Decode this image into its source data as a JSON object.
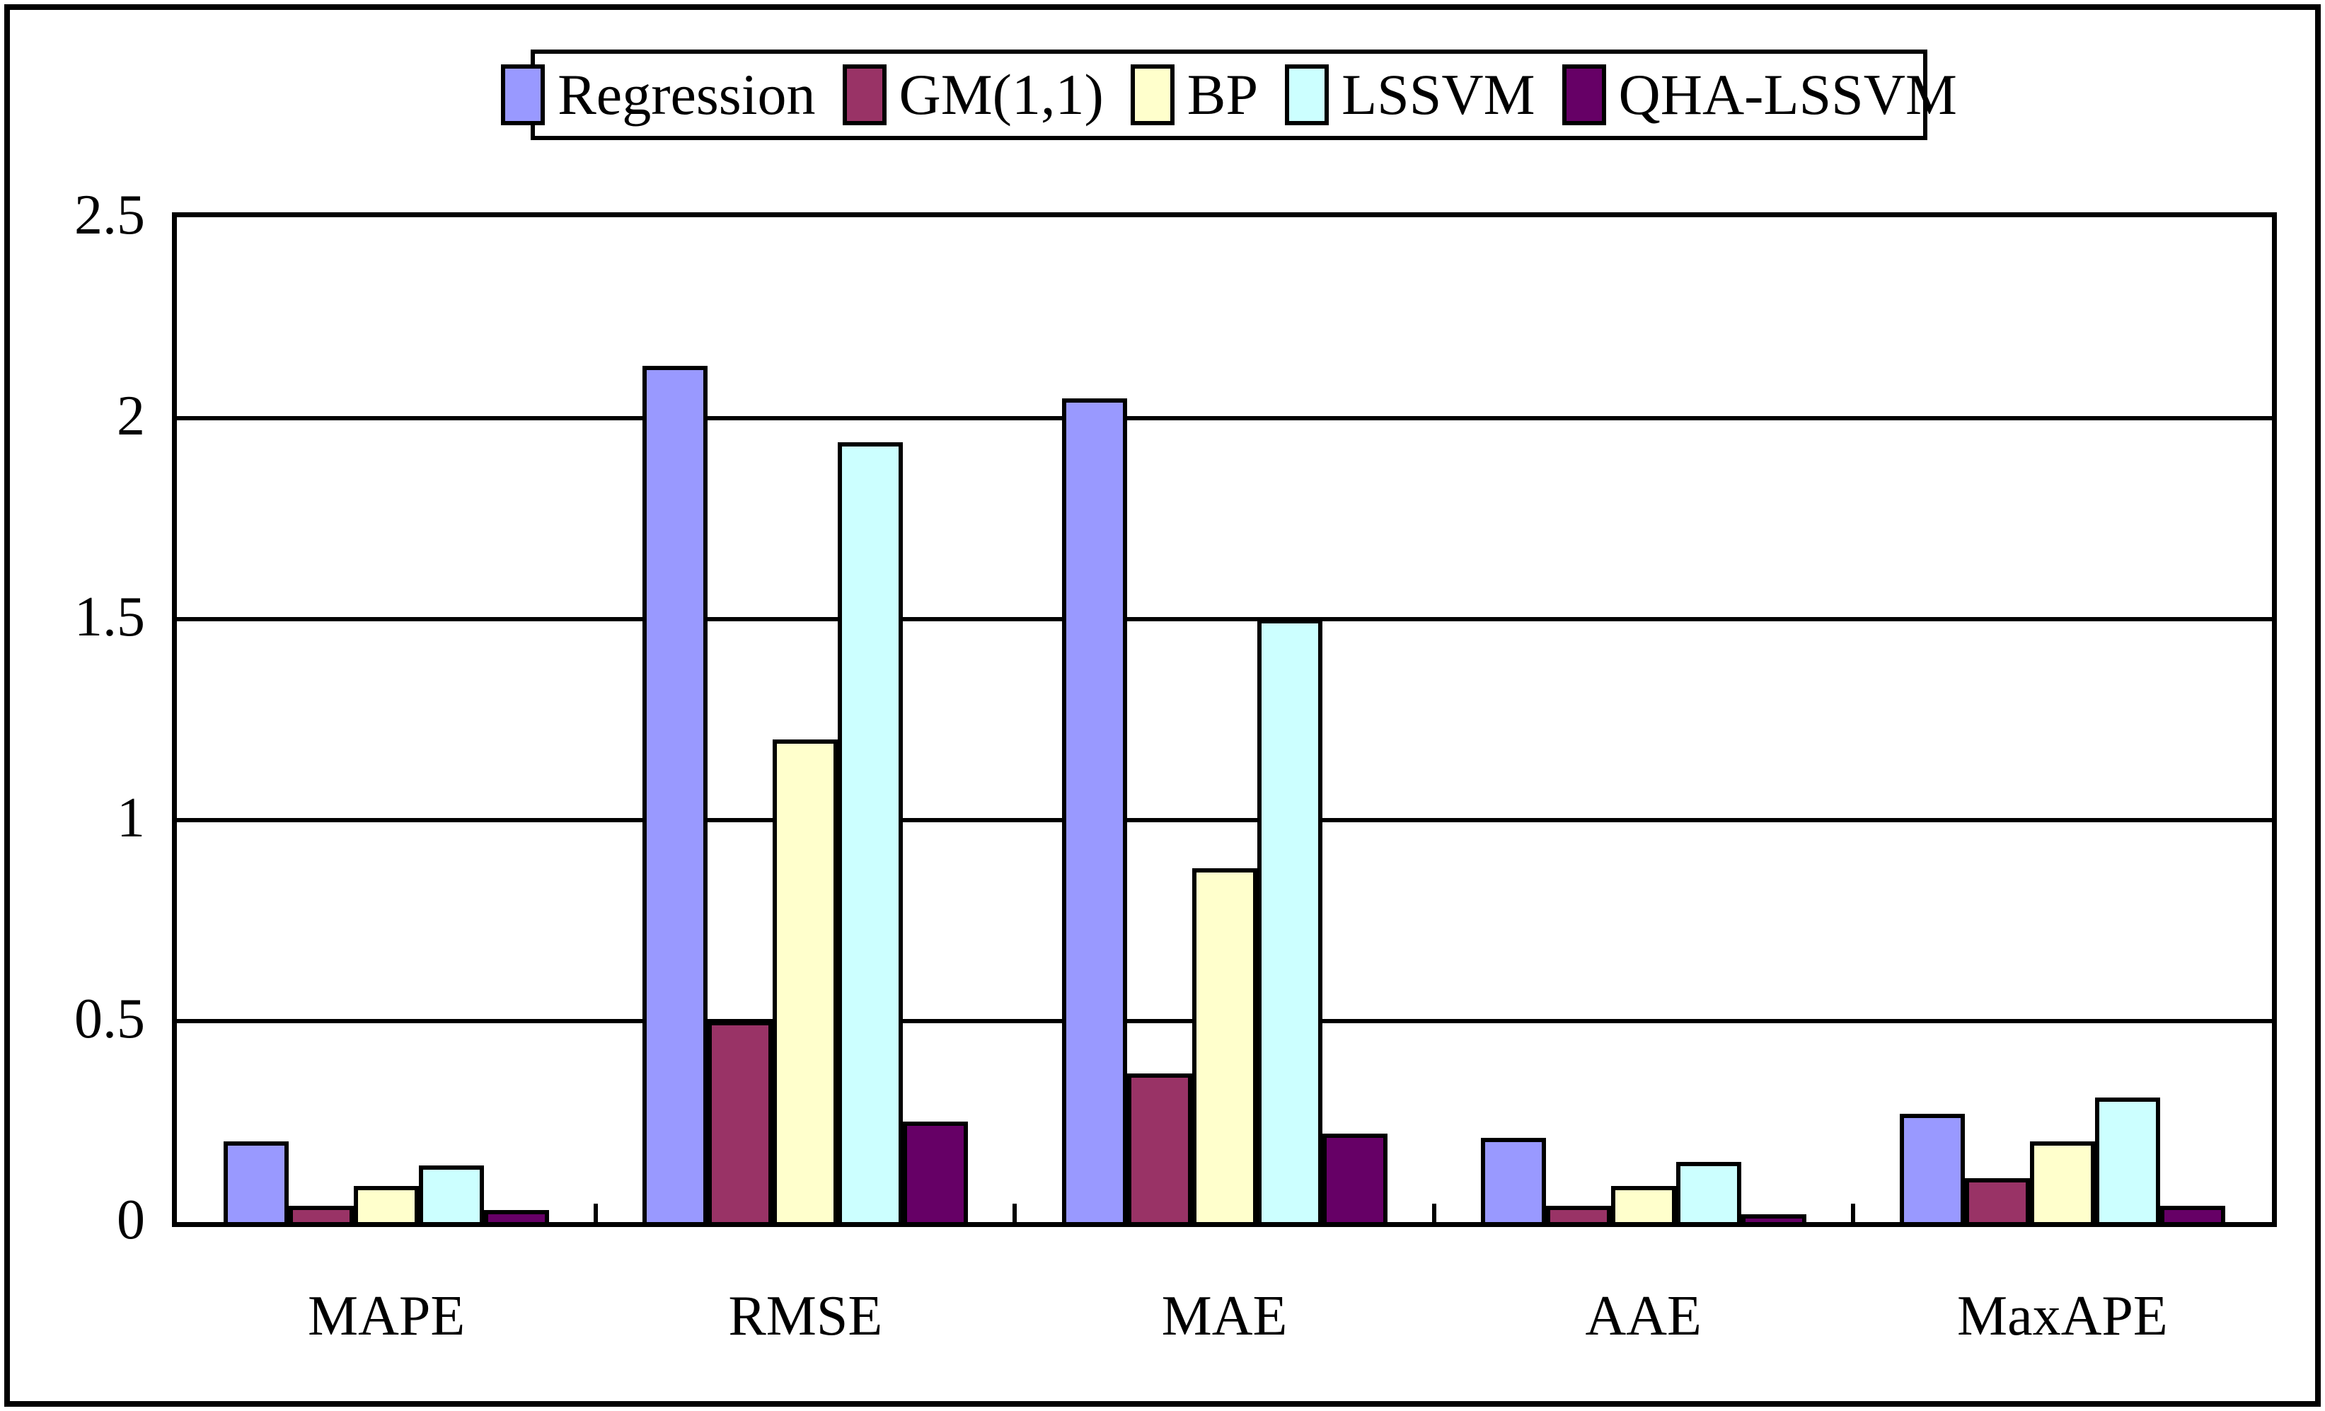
{
  "figure": {
    "background_color": "#ffffff",
    "line_color": "#000000"
  },
  "legend": {
    "items": [
      {
        "label": "Regression",
        "color": "#9999ff"
      },
      {
        "label": "GM(1,1)",
        "color": "#993366"
      },
      {
        "label": "BP",
        "color": "#ffffcc"
      },
      {
        "label": "LSSVM",
        "color": "#ccffff"
      },
      {
        "label": "QHA-LSSVM",
        "color": "#660066"
      }
    ]
  },
  "y_axis": {
    "tick_labels": [
      "2.5",
      "2",
      "1.5",
      "1",
      "0.5",
      "0"
    ],
    "min": 0,
    "max": 2.5,
    "step": 0.5
  },
  "x_axis": {
    "categories": [
      "MAPE",
      "RMSE",
      "MAE",
      "AAE",
      "MaxAPE"
    ]
  },
  "chart_data": {
    "type": "bar",
    "title": "",
    "xlabel": "",
    "ylabel": "",
    "categories": [
      "MAPE",
      "RMSE",
      "MAE",
      "AAE",
      "MaxAPE"
    ],
    "series": [
      {
        "name": "Regression",
        "color": "#9999ff",
        "values": [
          0.2,
          2.13,
          2.05,
          0.21,
          0.27
        ]
      },
      {
        "name": "GM(1,1)",
        "color": "#993366",
        "values": [
          0.04,
          0.5,
          0.37,
          0.04,
          0.11
        ]
      },
      {
        "name": "BP",
        "color": "#ffffcc",
        "values": [
          0.09,
          1.2,
          0.88,
          0.09,
          0.2
        ]
      },
      {
        "name": "LSSVM",
        "color": "#ccffff",
        "values": [
          0.14,
          1.94,
          1.5,
          0.15,
          0.31
        ]
      },
      {
        "name": "QHA-LSSVM",
        "color": "#660066",
        "values": [
          0.03,
          0.25,
          0.22,
          0.02,
          0.04
        ]
      }
    ],
    "ylim": [
      0,
      2.5
    ],
    "grid": true,
    "grid_axis": "y",
    "legend_position": "top",
    "bar_edge_color": "#000000"
  }
}
